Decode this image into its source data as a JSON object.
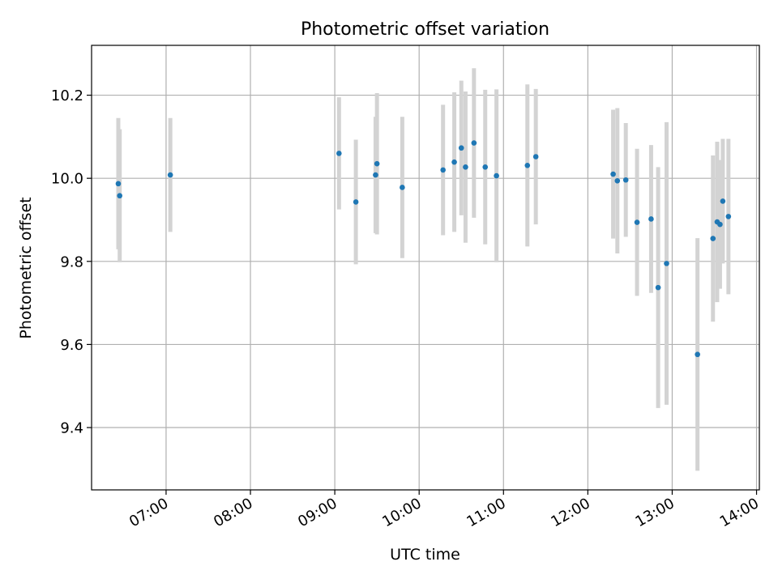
{
  "chart_data": {
    "type": "scatter",
    "title": "Photometric offset variation",
    "xlabel": "UTC time",
    "ylabel": "Photometric offset",
    "x_type": "time",
    "xlim": [
      "06:07",
      "14:02"
    ],
    "ylim": [
      9.25,
      10.32
    ],
    "yticks": [
      9.4,
      9.6,
      9.8,
      10.0,
      10.2
    ],
    "ytick_labels": [
      "9.4",
      "9.6",
      "9.8",
      "10.0",
      "10.2"
    ],
    "xticks": [
      "07:00",
      "08:00",
      "09:00",
      "10:00",
      "11:00",
      "12:00",
      "13:00",
      "14:00"
    ],
    "xtick_labels": [
      "07:00",
      "08:00",
      "09:00",
      "10:00",
      "11:00",
      "12:00",
      "13:00",
      "14:00"
    ],
    "grid": true,
    "colors": {
      "point": "#1f77b4",
      "errorbar": "#d3d3d3",
      "grid": "#b0b0b0"
    },
    "points": [
      {
        "x": "06:26",
        "y": 9.987,
        "err": 0.158
      },
      {
        "x": "06:27",
        "y": 9.958,
        "err": 0.16
      },
      {
        "x": "07:03",
        "y": 10.008,
        "err": 0.137
      },
      {
        "x": "09:03",
        "y": 10.06,
        "err": 0.135
      },
      {
        "x": "09:15",
        "y": 9.943,
        "err": 0.15
      },
      {
        "x": "09:29",
        "y": 10.008,
        "err": 0.14
      },
      {
        "x": "09:30",
        "y": 10.035,
        "err": 0.17
      },
      {
        "x": "09:48",
        "y": 9.978,
        "err": 0.17
      },
      {
        "x": "10:17",
        "y": 10.02,
        "err": 0.157
      },
      {
        "x": "10:25",
        "y": 10.039,
        "err": 0.168
      },
      {
        "x": "10:30",
        "y": 10.073,
        "err": 0.162
      },
      {
        "x": "10:33",
        "y": 10.027,
        "err": 0.182
      },
      {
        "x": "10:39",
        "y": 10.085,
        "err": 0.18
      },
      {
        "x": "10:47",
        "y": 10.027,
        "err": 0.186
      },
      {
        "x": "10:55",
        "y": 10.006,
        "err": 0.208
      },
      {
        "x": "11:17",
        "y": 10.031,
        "err": 0.195
      },
      {
        "x": "11:23",
        "y": 10.052,
        "err": 0.163
      },
      {
        "x": "12:18",
        "y": 10.01,
        "err": 0.155
      },
      {
        "x": "12:21",
        "y": 9.994,
        "err": 0.175
      },
      {
        "x": "12:27",
        "y": 9.996,
        "err": 0.137
      },
      {
        "x": "12:35",
        "y": 9.894,
        "err": 0.177
      },
      {
        "x": "12:45",
        "y": 9.902,
        "err": 0.178
      },
      {
        "x": "12:50",
        "y": 9.737,
        "err": 0.29
      },
      {
        "x": "12:56",
        "y": 9.795,
        "err": 0.34
      },
      {
        "x": "13:18",
        "y": 9.576,
        "err": 0.28
      },
      {
        "x": "13:29",
        "y": 9.855,
        "err": 0.2
      },
      {
        "x": "13:32",
        "y": 9.895,
        "err": 0.193
      },
      {
        "x": "13:34",
        "y": 9.889,
        "err": 0.155
      },
      {
        "x": "13:36",
        "y": 9.945,
        "err": 0.15
      },
      {
        "x": "13:40",
        "y": 9.908,
        "err": 0.187
      }
    ]
  }
}
